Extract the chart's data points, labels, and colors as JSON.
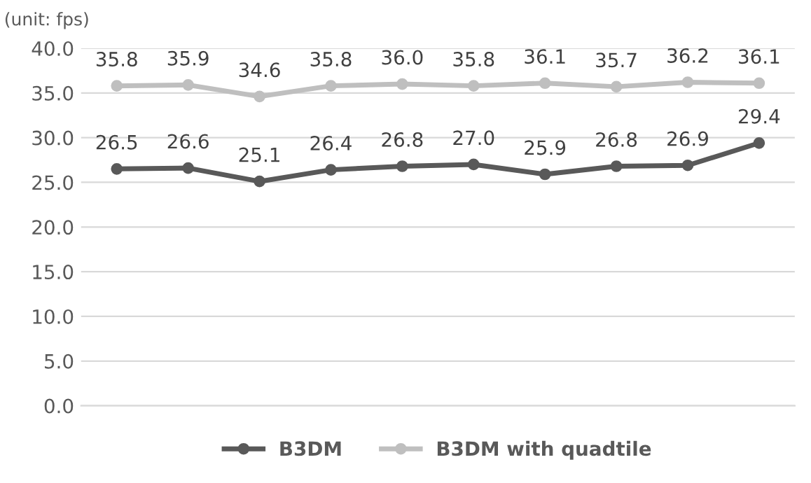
{
  "chart_data": {
    "type": "line",
    "annotations": [
      "(unit: fps)"
    ],
    "categories": [
      null,
      null,
      null,
      null,
      null,
      null,
      null,
      null,
      null,
      null
    ],
    "series": [
      {
        "name": "B3DM",
        "color": "#595959",
        "values": [
          26.5,
          26.6,
          25.1,
          26.4,
          26.8,
          27.0,
          25.9,
          26.8,
          26.9,
          29.4
        ],
        "value_labels": [
          "26.5",
          "26.6",
          "25.1",
          "26.4",
          "26.8",
          "27.0",
          "25.9",
          "26.8",
          "26.9",
          "29.4"
        ]
      },
      {
        "name": "B3DM with quadtile",
        "color": "#bfbfbf",
        "values": [
          35.8,
          35.9,
          34.6,
          35.8,
          36.0,
          35.8,
          36.1,
          35.7,
          36.2,
          36.1
        ],
        "value_labels": [
          "35.8",
          "35.9",
          "34.6",
          "35.8",
          "36.0",
          "35.8",
          "36.1",
          "35.7",
          "36.2",
          "36.1"
        ]
      }
    ],
    "ylim": [
      0,
      40
    ],
    "yticks": [
      {
        "value": 0,
        "label": "0.0"
      },
      {
        "value": 5,
        "label": "5.0"
      },
      {
        "value": 10,
        "label": "10.0"
      },
      {
        "value": 15,
        "label": "15.0"
      },
      {
        "value": 20,
        "label": "20.0"
      },
      {
        "value": 25,
        "label": "25.0"
      },
      {
        "value": 30,
        "label": "30.0"
      },
      {
        "value": 35,
        "label": "35.0"
      },
      {
        "value": 40,
        "label": "40.0"
      }
    ],
    "grid": "y",
    "legend": "bottom",
    "marker": "circle",
    "line_style": "solid"
  }
}
